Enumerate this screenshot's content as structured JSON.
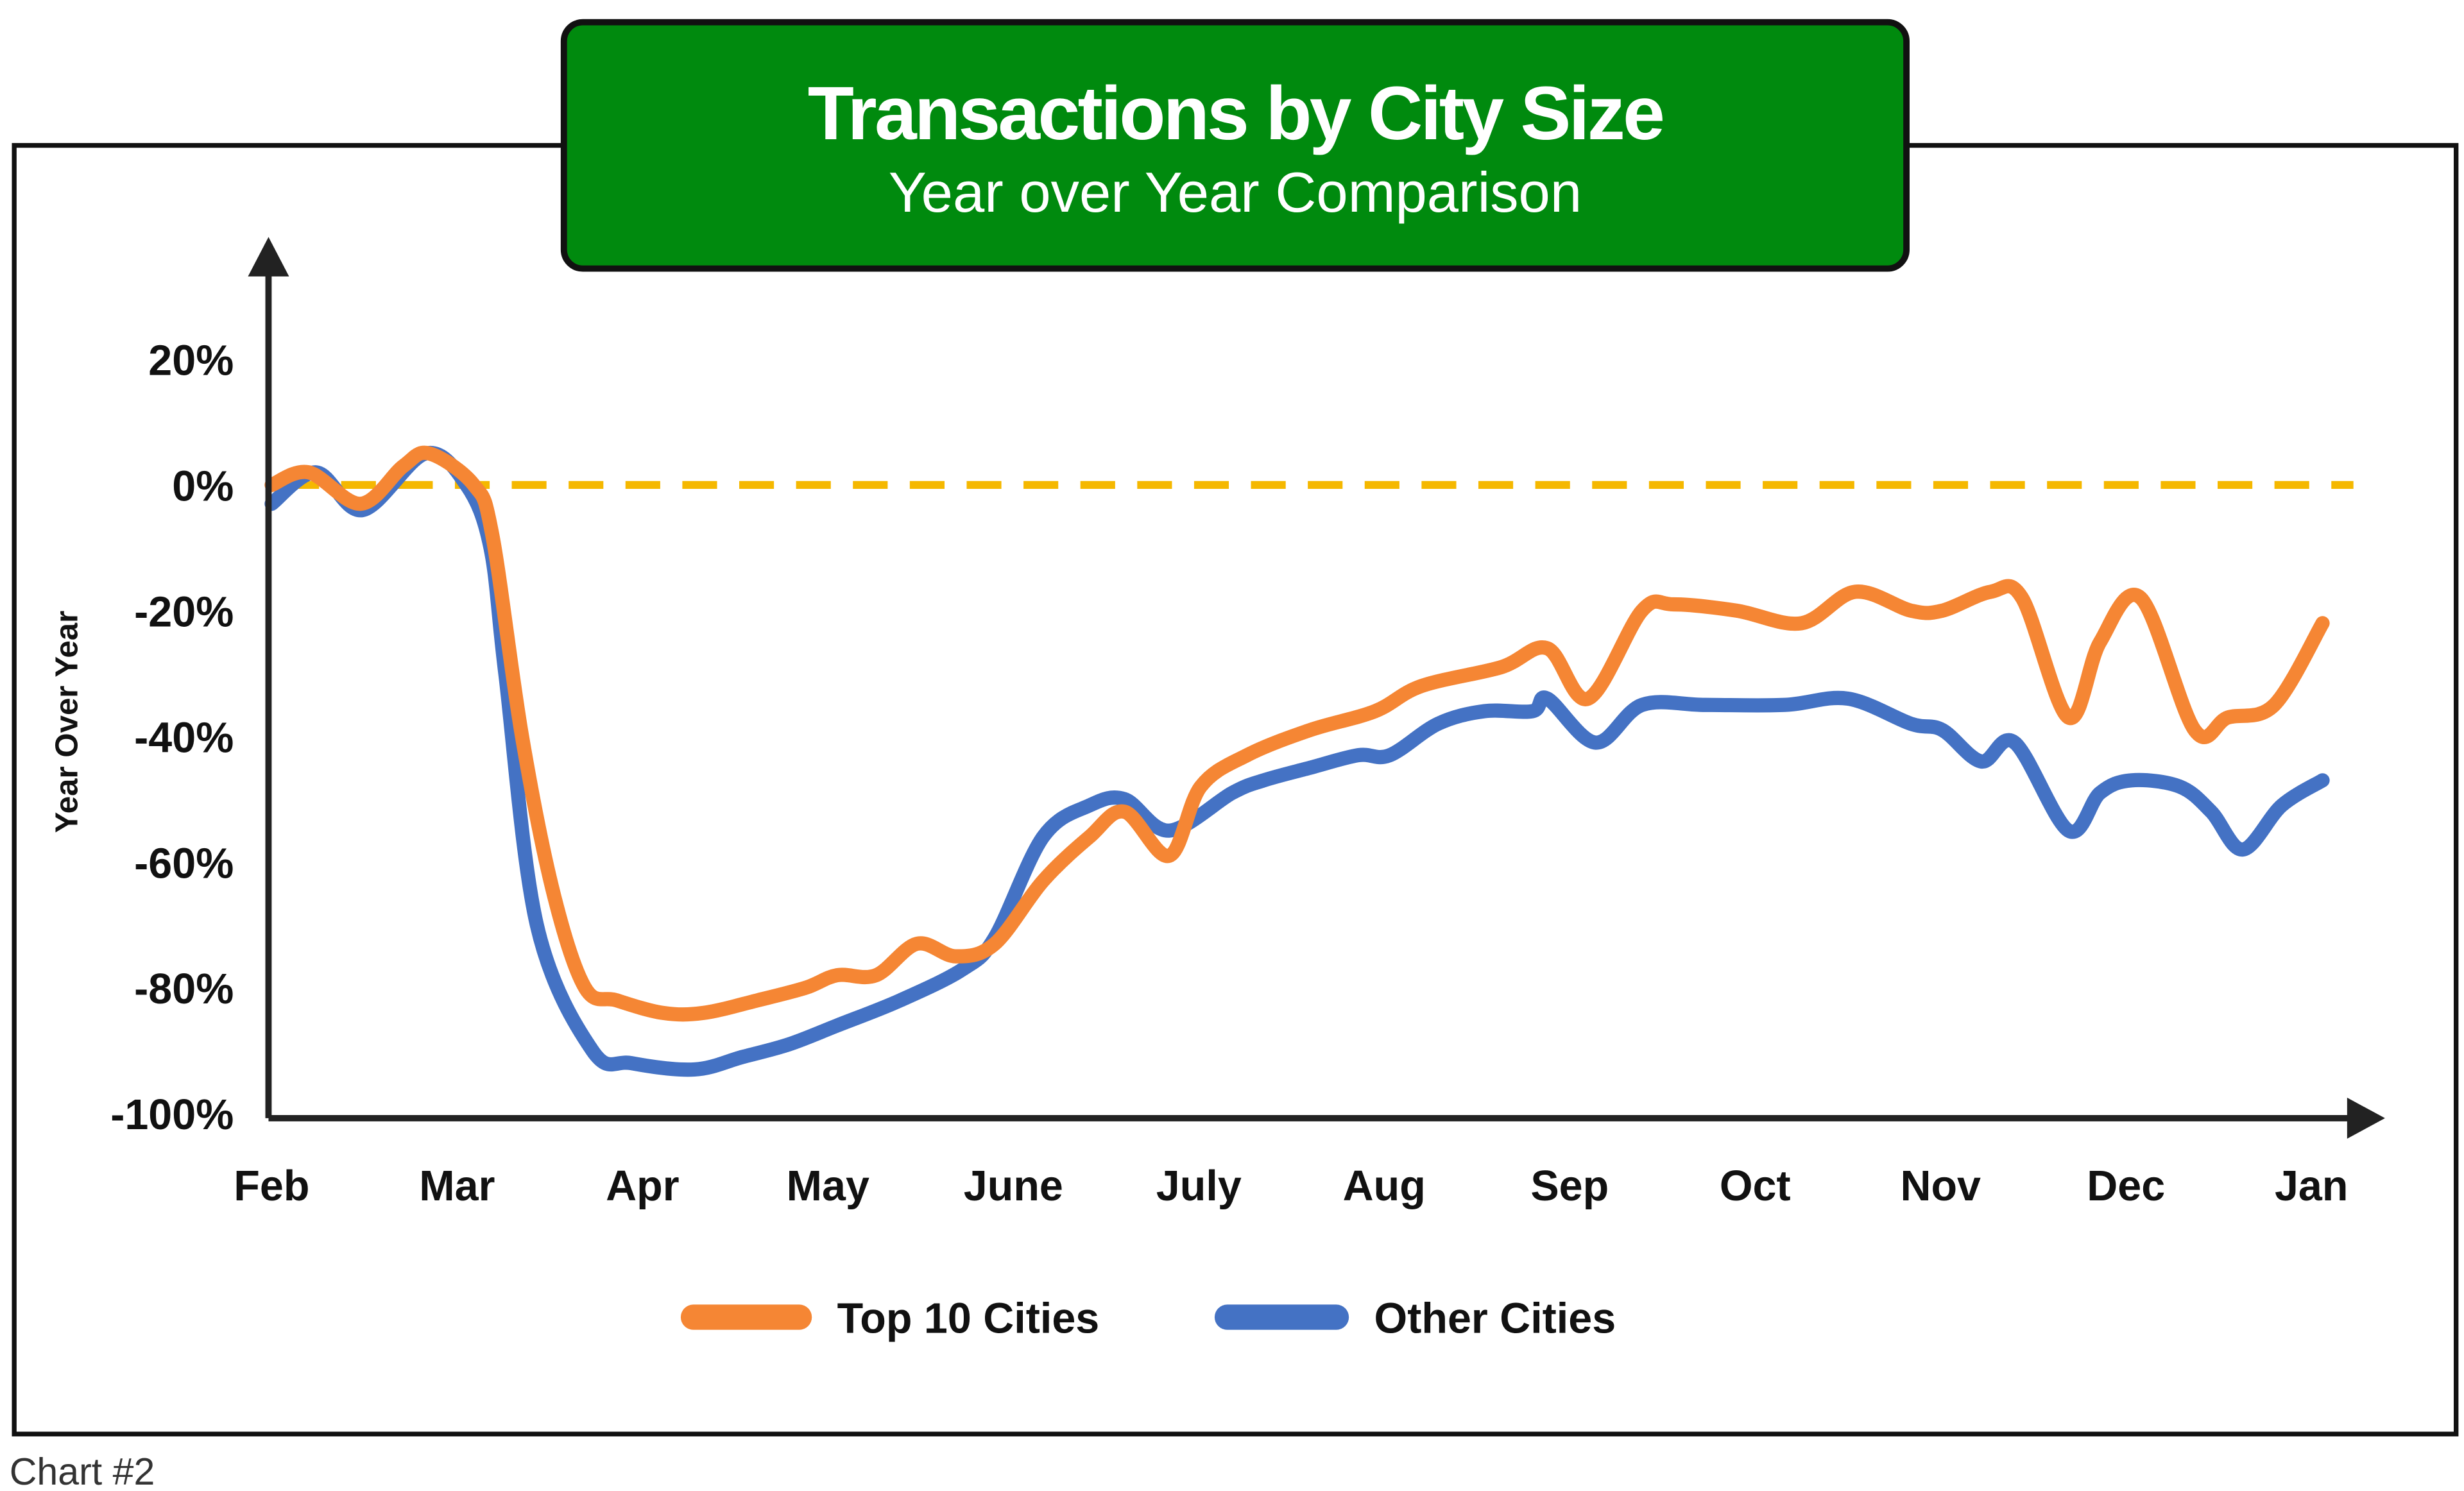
{
  "header": {
    "title": "Transactions by City Size",
    "subtitle": "Year over Year Comparison",
    "title_bg": "#008a0e"
  },
  "footer": {
    "caption": "Chart #2"
  },
  "chart_data": {
    "type": "line",
    "title": "Transactions by City Size",
    "subtitle": "Year over Year Comparison",
    "xlabel": "",
    "ylabel": "Year Over Year",
    "x_unit": "months since Feb (0=Feb, 11=Jan)",
    "categories": [
      "Feb",
      "Mar",
      "Apr",
      "May",
      "June",
      "July",
      "Aug",
      "Sep",
      "Oct",
      "Nov",
      "Dec",
      "Jan"
    ],
    "yticks": [
      20,
      0,
      -20,
      -40,
      -60,
      -80,
      -100
    ],
    "ytick_labels": [
      "20%",
      "0%",
      "-20%",
      "-40%",
      "-60%",
      "-80%",
      "-100%"
    ],
    "ylim": [
      -100,
      25
    ],
    "xlim": [
      0,
      11.3
    ],
    "grid": false,
    "reference_line": {
      "y": 0,
      "color": "#f5b800",
      "style": "dashed"
    },
    "legend_position": "bottom-center",
    "series": [
      {
        "name": "Top 10 Cities",
        "color": "#f58634",
        "x": [
          0,
          0.2,
          0.48,
          0.71,
          0.85,
          1.09,
          1.19,
          1.35,
          1.52,
          1.69,
          1.86,
          2.11,
          2.33,
          2.62,
          2.88,
          3.05,
          3.26,
          3.48,
          3.69,
          3.9,
          4.16,
          4.41,
          4.6,
          4.84,
          5.01,
          5.26,
          5.6,
          5.95,
          6.2,
          6.63,
          6.88,
          7.1,
          7.39,
          7.56,
          7.9,
          8.25,
          8.54,
          8.84,
          9.01,
          9.27,
          9.44,
          9.69,
          9.86,
          10.08,
          10.37,
          10.55,
          10.8,
          11.06
        ],
        "values": [
          0,
          2,
          -3,
          3,
          5,
          0,
          -8,
          -40,
          -65,
          -80,
          -82,
          -84,
          -84,
          -82,
          -80,
          -78,
          -78,
          -73,
          -75,
          -73,
          -63,
          -56,
          -52,
          -59,
          -48,
          -43,
          -39,
          -36,
          -32,
          -29,
          -26,
          -34,
          -20,
          -19,
          -20,
          -22,
          -17,
          -20,
          -20,
          -17,
          -18,
          -37,
          -25,
          -18,
          -39,
          -37,
          -35,
          -22
        ]
      },
      {
        "name": "Other Cities",
        "color": "#4472c4",
        "x": [
          0,
          0.24,
          0.49,
          0.83,
          1.05,
          1.18,
          1.26,
          1.43,
          1.73,
          1.94,
          2.28,
          2.54,
          2.79,
          3.05,
          3.39,
          3.73,
          3.9,
          4.16,
          4.41,
          4.6,
          4.84,
          5.18,
          5.35,
          5.6,
          5.86,
          6.03,
          6.29,
          6.54,
          6.8,
          6.88,
          7.14,
          7.39,
          7.73,
          8.16,
          8.5,
          8.84,
          9.01,
          9.22,
          9.4,
          9.69,
          9.86,
          10.03,
          10.29,
          10.46,
          10.63,
          10.84,
          11.06
        ],
        "values": [
          -3,
          2,
          -4,
          5,
          0,
          -10,
          -30,
          -70,
          -90,
          -92,
          -93,
          -91,
          -89,
          -86,
          -82,
          -77,
          -72,
          -56,
          -51,
          -50,
          -55,
          -49,
          -47,
          -45,
          -43,
          -43,
          -38,
          -36,
          -36,
          -34,
          -41,
          -35,
          -35,
          -35,
          -34,
          -38,
          -39,
          -44,
          -41,
          -55,
          -49,
          -47,
          -48,
          -52,
          -58,
          -51,
          -47
        ]
      }
    ]
  }
}
